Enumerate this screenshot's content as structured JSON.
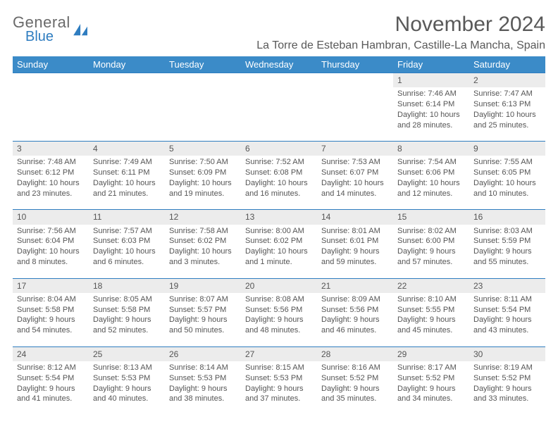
{
  "brand": {
    "line1": "General",
    "line2": "Blue"
  },
  "title": "November 2024",
  "location": "La Torre de Esteban Hambran, Castille-La Mancha, Spain",
  "colors": {
    "header_bg": "#3b8bc8",
    "header_text": "#ffffff",
    "daynum_bg": "#ececec",
    "border_top": "#2f7dc0",
    "body_text": "#555555",
    "title_text": "#595959",
    "brand_gray": "#6a6a6a",
    "brand_blue": "#2f7dc0"
  },
  "weekdays": [
    "Sunday",
    "Monday",
    "Tuesday",
    "Wednesday",
    "Thursday",
    "Friday",
    "Saturday"
  ],
  "weeks": [
    [
      null,
      null,
      null,
      null,
      null,
      {
        "n": "1",
        "sunrise": "Sunrise: 7:46 AM",
        "sunset": "Sunset: 6:14 PM",
        "day": "Daylight: 10 hours and 28 minutes."
      },
      {
        "n": "2",
        "sunrise": "Sunrise: 7:47 AM",
        "sunset": "Sunset: 6:13 PM",
        "day": "Daylight: 10 hours and 25 minutes."
      }
    ],
    [
      {
        "n": "3",
        "sunrise": "Sunrise: 7:48 AM",
        "sunset": "Sunset: 6:12 PM",
        "day": "Daylight: 10 hours and 23 minutes."
      },
      {
        "n": "4",
        "sunrise": "Sunrise: 7:49 AM",
        "sunset": "Sunset: 6:11 PM",
        "day": "Daylight: 10 hours and 21 minutes."
      },
      {
        "n": "5",
        "sunrise": "Sunrise: 7:50 AM",
        "sunset": "Sunset: 6:09 PM",
        "day": "Daylight: 10 hours and 19 minutes."
      },
      {
        "n": "6",
        "sunrise": "Sunrise: 7:52 AM",
        "sunset": "Sunset: 6:08 PM",
        "day": "Daylight: 10 hours and 16 minutes."
      },
      {
        "n": "7",
        "sunrise": "Sunrise: 7:53 AM",
        "sunset": "Sunset: 6:07 PM",
        "day": "Daylight: 10 hours and 14 minutes."
      },
      {
        "n": "8",
        "sunrise": "Sunrise: 7:54 AM",
        "sunset": "Sunset: 6:06 PM",
        "day": "Daylight: 10 hours and 12 minutes."
      },
      {
        "n": "9",
        "sunrise": "Sunrise: 7:55 AM",
        "sunset": "Sunset: 6:05 PM",
        "day": "Daylight: 10 hours and 10 minutes."
      }
    ],
    [
      {
        "n": "10",
        "sunrise": "Sunrise: 7:56 AM",
        "sunset": "Sunset: 6:04 PM",
        "day": "Daylight: 10 hours and 8 minutes."
      },
      {
        "n": "11",
        "sunrise": "Sunrise: 7:57 AM",
        "sunset": "Sunset: 6:03 PM",
        "day": "Daylight: 10 hours and 6 minutes."
      },
      {
        "n": "12",
        "sunrise": "Sunrise: 7:58 AM",
        "sunset": "Sunset: 6:02 PM",
        "day": "Daylight: 10 hours and 3 minutes."
      },
      {
        "n": "13",
        "sunrise": "Sunrise: 8:00 AM",
        "sunset": "Sunset: 6:02 PM",
        "day": "Daylight: 10 hours and 1 minute."
      },
      {
        "n": "14",
        "sunrise": "Sunrise: 8:01 AM",
        "sunset": "Sunset: 6:01 PM",
        "day": "Daylight: 9 hours and 59 minutes."
      },
      {
        "n": "15",
        "sunrise": "Sunrise: 8:02 AM",
        "sunset": "Sunset: 6:00 PM",
        "day": "Daylight: 9 hours and 57 minutes."
      },
      {
        "n": "16",
        "sunrise": "Sunrise: 8:03 AM",
        "sunset": "Sunset: 5:59 PM",
        "day": "Daylight: 9 hours and 55 minutes."
      }
    ],
    [
      {
        "n": "17",
        "sunrise": "Sunrise: 8:04 AM",
        "sunset": "Sunset: 5:58 PM",
        "day": "Daylight: 9 hours and 54 minutes."
      },
      {
        "n": "18",
        "sunrise": "Sunrise: 8:05 AM",
        "sunset": "Sunset: 5:58 PM",
        "day": "Daylight: 9 hours and 52 minutes."
      },
      {
        "n": "19",
        "sunrise": "Sunrise: 8:07 AM",
        "sunset": "Sunset: 5:57 PM",
        "day": "Daylight: 9 hours and 50 minutes."
      },
      {
        "n": "20",
        "sunrise": "Sunrise: 8:08 AM",
        "sunset": "Sunset: 5:56 PM",
        "day": "Daylight: 9 hours and 48 minutes."
      },
      {
        "n": "21",
        "sunrise": "Sunrise: 8:09 AM",
        "sunset": "Sunset: 5:56 PM",
        "day": "Daylight: 9 hours and 46 minutes."
      },
      {
        "n": "22",
        "sunrise": "Sunrise: 8:10 AM",
        "sunset": "Sunset: 5:55 PM",
        "day": "Daylight: 9 hours and 45 minutes."
      },
      {
        "n": "23",
        "sunrise": "Sunrise: 8:11 AM",
        "sunset": "Sunset: 5:54 PM",
        "day": "Daylight: 9 hours and 43 minutes."
      }
    ],
    [
      {
        "n": "24",
        "sunrise": "Sunrise: 8:12 AM",
        "sunset": "Sunset: 5:54 PM",
        "day": "Daylight: 9 hours and 41 minutes."
      },
      {
        "n": "25",
        "sunrise": "Sunrise: 8:13 AM",
        "sunset": "Sunset: 5:53 PM",
        "day": "Daylight: 9 hours and 40 minutes."
      },
      {
        "n": "26",
        "sunrise": "Sunrise: 8:14 AM",
        "sunset": "Sunset: 5:53 PM",
        "day": "Daylight: 9 hours and 38 minutes."
      },
      {
        "n": "27",
        "sunrise": "Sunrise: 8:15 AM",
        "sunset": "Sunset: 5:53 PM",
        "day": "Daylight: 9 hours and 37 minutes."
      },
      {
        "n": "28",
        "sunrise": "Sunrise: 8:16 AM",
        "sunset": "Sunset: 5:52 PM",
        "day": "Daylight: 9 hours and 35 minutes."
      },
      {
        "n": "29",
        "sunrise": "Sunrise: 8:17 AM",
        "sunset": "Sunset: 5:52 PM",
        "day": "Daylight: 9 hours and 34 minutes."
      },
      {
        "n": "30",
        "sunrise": "Sunrise: 8:19 AM",
        "sunset": "Sunset: 5:52 PM",
        "day": "Daylight: 9 hours and 33 minutes."
      }
    ]
  ]
}
